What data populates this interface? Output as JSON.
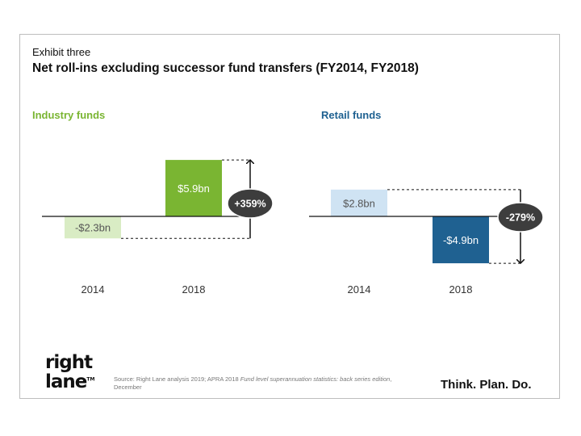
{
  "exhibit_label": "Exhibit three",
  "title": "Net roll-ins excluding successor fund transfers (FY2014, FY2018)",
  "logo": {
    "line1": "right",
    "line2": "lane",
    "trademark": "TM"
  },
  "source": {
    "prefix": "Source: Right Lane analysis 2019; APRA 2018 ",
    "italic": "Fund level superannuation statistics: back series edition",
    "suffix": ", December"
  },
  "tagline": "Think. Plan. Do.",
  "chart_data": [
    {
      "type": "bar",
      "title": "Industry funds",
      "title_color": "#7ab532",
      "categories": [
        "2014",
        "2018"
      ],
      "values": [
        -2.3,
        5.9
      ],
      "value_labels": [
        "-$2.3bn",
        "$5.9bn"
      ],
      "unit": "$bn",
      "colors": [
        "#d9ecc4",
        "#7ab532"
      ],
      "change_label": "+359%",
      "change_direction": "up"
    },
    {
      "type": "bar",
      "title": "Retail funds",
      "title_color": "#1f6191",
      "categories": [
        "2014",
        "2018"
      ],
      "values": [
        2.8,
        -4.9
      ],
      "value_labels": [
        "$2.8bn",
        "-$4.9bn"
      ],
      "unit": "$bn",
      "colors": [
        "#cfe3f3",
        "#1f6191"
      ],
      "change_label": "-279%",
      "change_direction": "down"
    }
  ]
}
